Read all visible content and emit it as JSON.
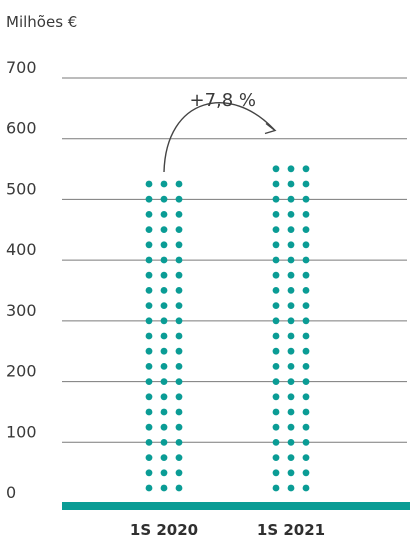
{
  "chart_data": {
    "type": "bar",
    "unit_label": "Milhões €",
    "categories": [
      "1S 2020",
      "1S 2021"
    ],
    "values": [
      532,
      574
    ],
    "ylim": [
      0,
      700
    ],
    "yticks": [
      "0",
      "100",
      "200",
      "300",
      "400",
      "500",
      "600",
      "700"
    ],
    "grid": true,
    "annotation": "+7,8 %",
    "colors": {
      "dots": "#0a9c95",
      "baseline": "#0a9c95",
      "grid": "#7a7a7a",
      "text": "#3a3a3a"
    }
  }
}
